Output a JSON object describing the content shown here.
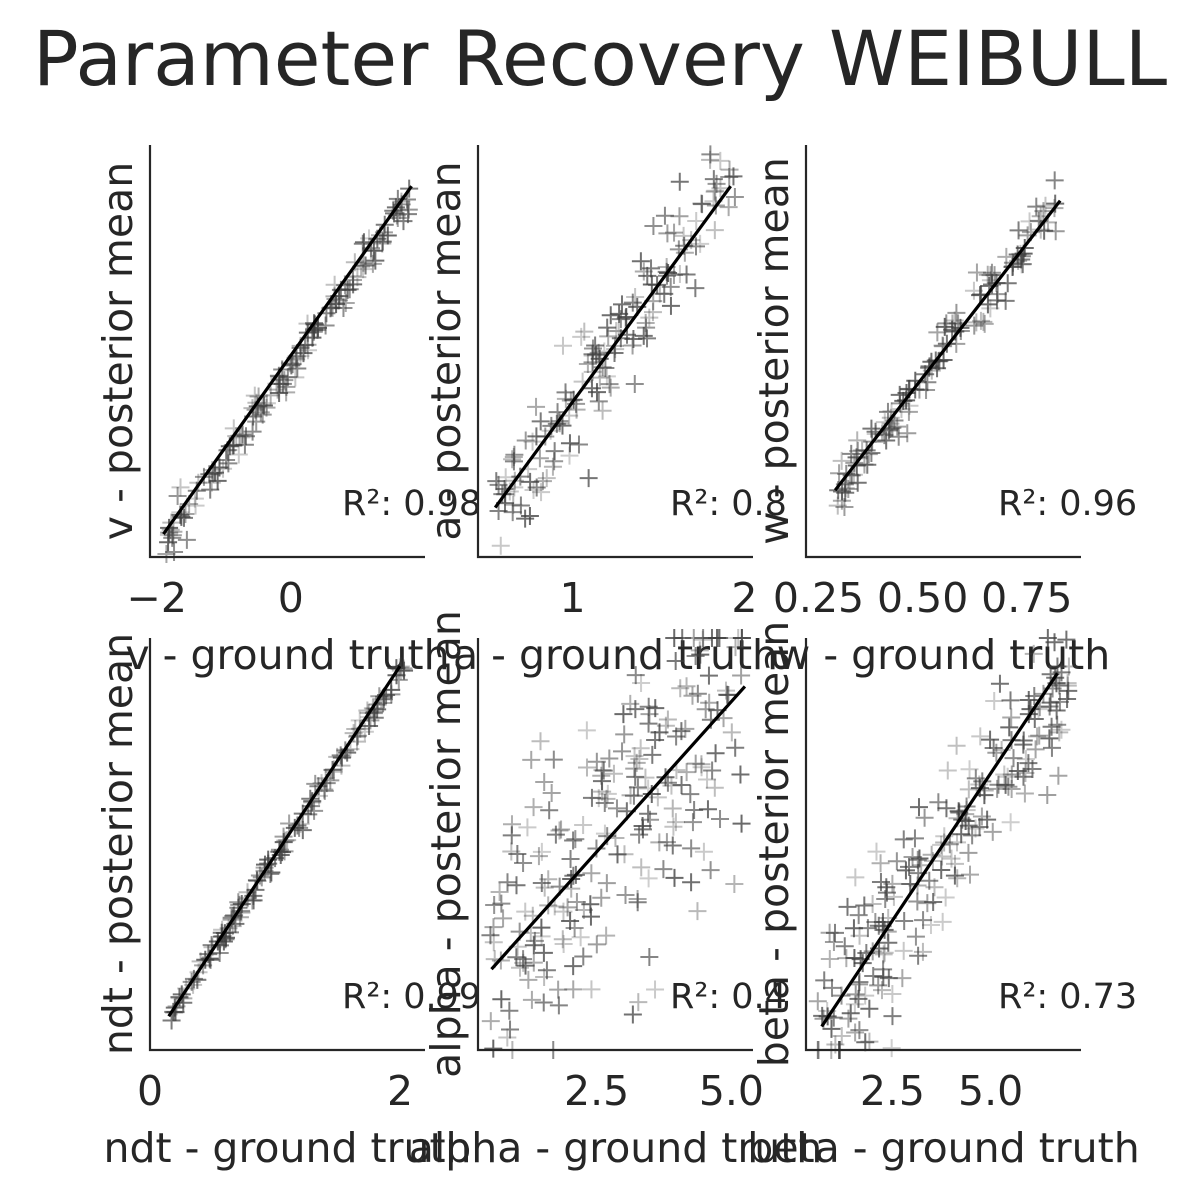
{
  "chart_data": {
    "type": "scatter",
    "title": "Parameter Recovery WEIBULL",
    "panels": [
      {
        "param": "v",
        "xlabel": "v - ground truth",
        "ylabel": "v - posterior mean",
        "xlim": [
          -2.1,
          2.0
        ],
        "ylim": [
          -2.1,
          2.4
        ],
        "xticks": [
          -2,
          0
        ],
        "xtick_labels": [
          "−2",
          "0"
        ],
        "r2_label": "R²: 0.98",
        "fit_line": [
          [
            -1.9,
            -1.85
          ],
          [
            1.8,
            1.95
          ]
        ],
        "cloud": {
          "xmin": -1.9,
          "xmax": 1.8,
          "slope": 1.03,
          "intercept": 0.0,
          "noise": 0.1,
          "n": 160,
          "seed": 11
        }
      },
      {
        "param": "a",
        "xlabel": "a - ground truth",
        "ylabel": "a - posterior mean",
        "xlim": [
          0.45,
          2.05
        ],
        "ylim": [
          0.5,
          2.0
        ],
        "xticks": [
          1,
          2
        ],
        "xtick_labels": [
          "1",
          "2"
        ],
        "r2_label": "R²: 0.8",
        "fit_line": [
          [
            0.55,
            0.68
          ],
          [
            1.92,
            1.85
          ]
        ],
        "cloud": {
          "xmin": 0.55,
          "xmax": 1.95,
          "slope": 0.86,
          "intercept": 0.21,
          "noise": 0.1,
          "n": 160,
          "seed": 23
        }
      },
      {
        "param": "w",
        "xlabel": "w - ground truth",
        "ylabel": "w - posterior mean",
        "xlim": [
          0.22,
          0.88
        ],
        "ylim": [
          0.18,
          0.92
        ],
        "xticks": [
          0.25,
          0.5,
          0.75
        ],
        "xtick_labels": [
          "0.25",
          "0.50",
          "0.75"
        ],
        "r2_label": "R²: 0.96",
        "fit_line": [
          [
            0.29,
            0.3
          ],
          [
            0.83,
            0.82
          ]
        ],
        "cloud": {
          "xmin": 0.29,
          "xmax": 0.83,
          "slope": 0.96,
          "intercept": 0.02,
          "noise": 0.025,
          "n": 140,
          "seed": 37
        }
      },
      {
        "param": "ndt",
        "xlabel": "ndt - ground truth",
        "ylabel": "ndt - posterior mean",
        "xlim": [
          0.0,
          2.2
        ],
        "ylim": [
          0.0,
          2.2
        ],
        "xticks": [
          0,
          2
        ],
        "xtick_labels": [
          "0",
          "2"
        ],
        "r2_label": "R²: 0.99",
        "fit_line": [
          [
            0.15,
            0.18
          ],
          [
            2.0,
            2.05
          ]
        ],
        "cloud": {
          "xmin": 0.15,
          "xmax": 2.05,
          "slope": 1.0,
          "intercept": 0.02,
          "noise": 0.03,
          "n": 150,
          "seed": 41
        }
      },
      {
        "param": "alpha",
        "xlabel": "alpha - ground truth",
        "ylabel": "alpha - posterior mean",
        "xlim": [
          0.3,
          5.4
        ],
        "ylim": [
          0.3,
          5.4
        ],
        "xticks": [
          2.5,
          5.0
        ],
        "xtick_labels": [
          "2.5",
          "5.0"
        ],
        "r2_label": "R²: 0.4",
        "fit_line": [
          [
            0.55,
            1.3
          ],
          [
            5.25,
            4.8
          ]
        ],
        "cloud": {
          "xmin": 0.5,
          "xmax": 5.2,
          "slope": 0.75,
          "intercept": 0.9,
          "noise": 1.0,
          "n": 230,
          "seed": 53
        }
      },
      {
        "param": "beta",
        "xlabel": "beta - ground truth",
        "ylabel": "beta - posterior mean",
        "xlim": [
          0.3,
          7.3
        ],
        "ylim": [
          0.3,
          7.3
        ],
        "xticks": [
          2.5,
          5.0
        ],
        "xtick_labels": [
          "2.5",
          "5.0"
        ],
        "r2_label": "R²: 0.73",
        "fit_line": [
          [
            0.7,
            0.7
          ],
          [
            6.7,
            6.7
          ]
        ],
        "cloud": {
          "xmin": 0.6,
          "xmax": 7.0,
          "slope": 0.93,
          "intercept": 0.1,
          "noise": 0.6,
          "n": 220,
          "seed": 67
        }
      }
    ],
    "marker": "+",
    "point_color": "#404040",
    "line_color": "#000000"
  }
}
